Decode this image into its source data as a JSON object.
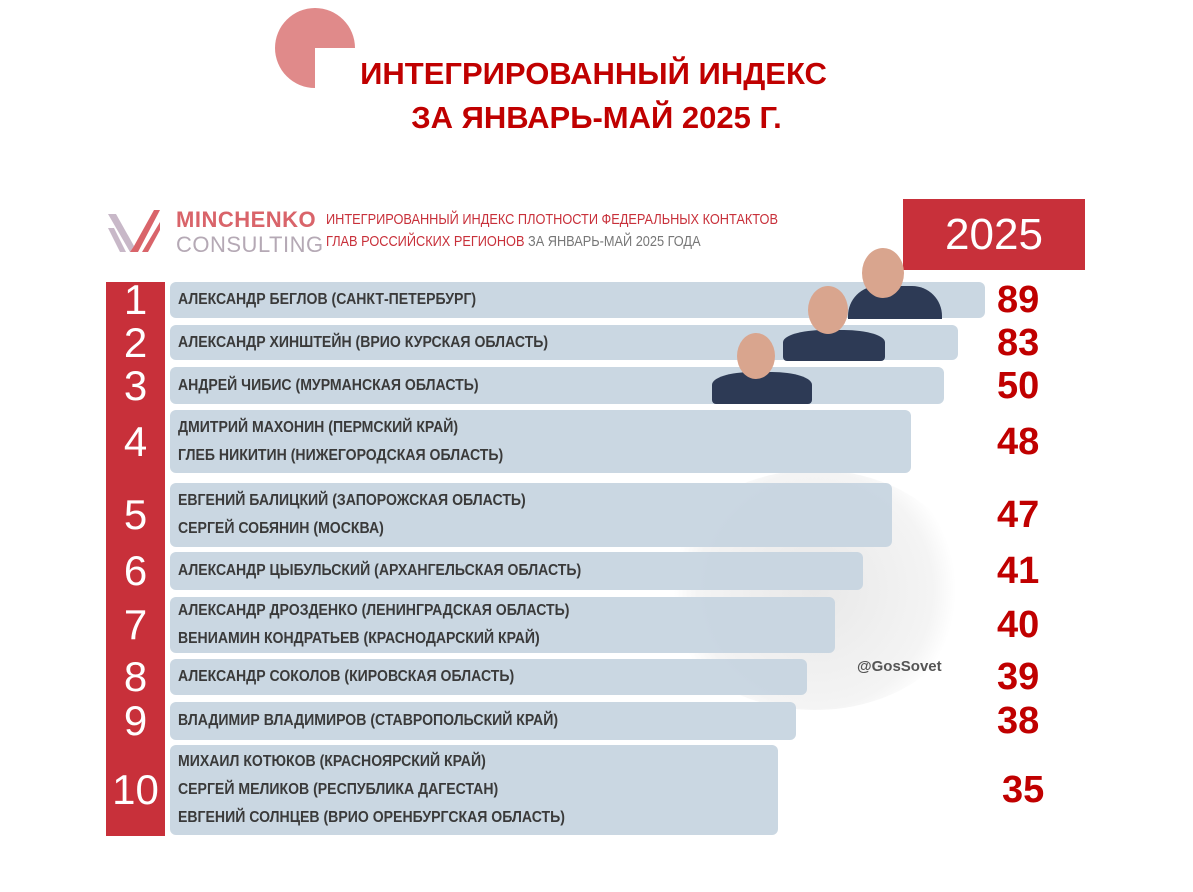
{
  "title": {
    "line1": "ИНТЕГРИРОВАННЫЙ ИНДЕКС",
    "line2": "ЗА ЯНВАРЬ-МАЙ 2025 Г."
  },
  "header": {
    "brand_top": "MINCHENKO",
    "brand_bottom": "CONSULTING",
    "subtitle_line1": "ИНТЕГРИРОВАННЫЙ ИНДЕКС ПЛОТНОСТИ ФЕДЕРАЛЬНЫХ КОНТАКТОВ",
    "subtitle_line2_red": "ГЛАВ РОССИЙСКИХ РЕГИОНОВ",
    "subtitle_line2_grey": " ЗА ЯНВАРЬ-МАЙ 2025 ГОДА",
    "year": "2025"
  },
  "watermark_handle": "@GosSovet",
  "colors": {
    "accent": "#c8303a",
    "title": "#c00000",
    "bar": "#c5d4e0",
    "values": "#c00000"
  },
  "chart_data": {
    "type": "bar",
    "orientation": "horizontal",
    "ranks": [
      {
        "rank": "1",
        "names": [
          "АЛЕКСАНДР БЕГЛОВ (САНКТ-ПЕТЕРБУРГ)"
        ],
        "value": 89
      },
      {
        "rank": "2",
        "names": [
          "АЛЕКСАНДР ХИНШТЕЙН (ВРИО КУРСКАЯ ОБЛАСТЬ)"
        ],
        "value": 83
      },
      {
        "rank": "3",
        "names": [
          "АНДРЕЙ ЧИБИС (МУРМАНСКАЯ ОБЛАСТЬ)"
        ],
        "value": 50
      },
      {
        "rank": "4",
        "names": [
          "ДМИТРИЙ МАХОНИН (ПЕРМСКИЙ КРАЙ)",
          "ГЛЕБ НИКИТИН (НИЖЕГОРОДСКАЯ ОБЛАСТЬ)"
        ],
        "value": 48
      },
      {
        "rank": "5",
        "names": [
          "ЕВГЕНИЙ БАЛИЦКИЙ (ЗАПОРОЖСКАЯ ОБЛАСТЬ)",
          "СЕРГЕЙ СОБЯНИН (МОСКВА)"
        ],
        "value": 47
      },
      {
        "rank": "6",
        "names": [
          "АЛЕКСАНДР ЦЫБУЛЬСКИЙ (АРХАНГЕЛЬСКАЯ ОБЛАСТЬ)"
        ],
        "value": 41
      },
      {
        "rank": "7",
        "names": [
          "АЛЕКСАНДР ДРОЗДЕНКО (ЛЕНИНГРАДСКАЯ ОБЛАСТЬ)",
          "ВЕНИАМИН КОНДРАТЬЕВ (КРАСНОДАРСКИЙ КРАЙ)"
        ],
        "value": 40
      },
      {
        "rank": "8",
        "names": [
          "АЛЕКСАНДР СОКОЛОВ (КИРОВСКАЯ ОБЛАСТЬ)"
        ],
        "value": 39
      },
      {
        "rank": "9",
        "names": [
          "ВЛАДИМИР ВЛАДИМИРОВ (СТАВРОПОЛЬСКИЙ КРАЙ)"
        ],
        "value": 38
      },
      {
        "rank": "10",
        "names": [
          "МИХАИЛ КОТЮКОВ (КРАСНОЯРСКИЙ КРАЙ)",
          "СЕРГЕЙ МЕЛИКОВ (РЕСПУБЛИКА ДАГЕСТАН)",
          "ЕВГЕНИЙ СОЛНЦЕВ (ВРИО ОРЕНБУРГСКАЯ ОБЛАСТЬ)"
        ],
        "value": 35
      }
    ]
  }
}
